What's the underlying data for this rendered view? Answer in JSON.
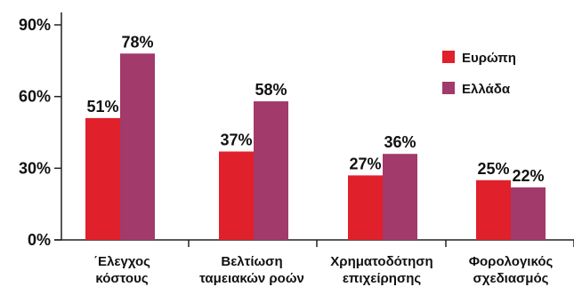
{
  "chart_data": {
    "type": "bar",
    "title": "",
    "xlabel": "",
    "ylabel": "",
    "ylim": [
      0,
      90
    ],
    "yticks": [
      0,
      30,
      60,
      90
    ],
    "ytick_labels": [
      "0%",
      "30%",
      "60%",
      "90%"
    ],
    "grid": false,
    "legend_position": "top-right",
    "categories": [
      [
        "΄Ελεγχος",
        "κόστους"
      ],
      [
        "Βελτίωση",
        "ταμειακών ροών"
      ],
      [
        "Χρηματοδότηση",
        "επιχείρησης"
      ],
      [
        "Φορολογικός",
        "σχεδιασμός"
      ]
    ],
    "series": [
      {
        "name": "Ευρώπη",
        "color": "#e0202b",
        "values": [
          51,
          37,
          27,
          25
        ],
        "labels": [
          "51%",
          "37%",
          "27%",
          "25%"
        ]
      },
      {
        "name": "Ελλάδα",
        "color": "#a23a6b",
        "values": [
          78,
          58,
          36,
          22
        ],
        "labels": [
          "78%",
          "58%",
          "36%",
          "22%"
        ]
      }
    ]
  }
}
